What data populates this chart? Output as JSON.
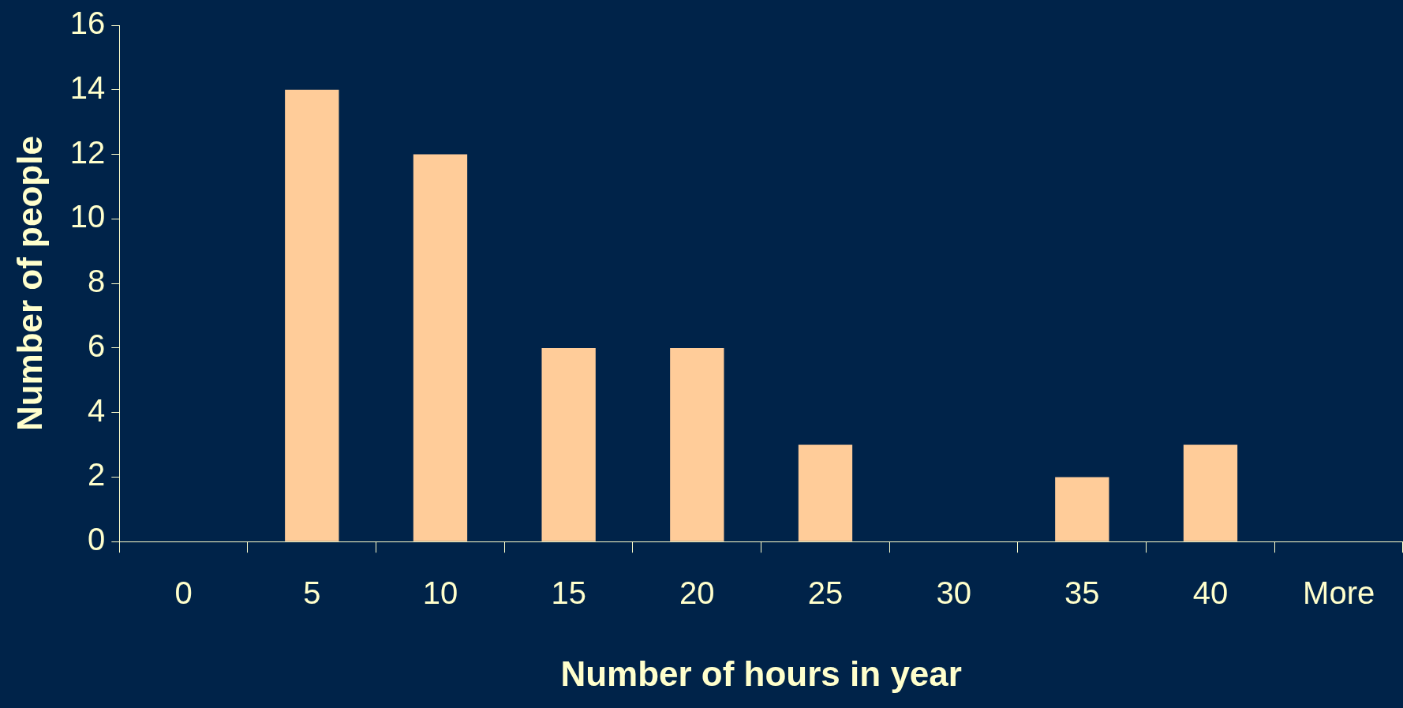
{
  "chart_data": {
    "type": "bar",
    "xlabel": "Number of hours in year",
    "ylabel": "Number of people",
    "categories": [
      "0",
      "5",
      "10",
      "15",
      "20",
      "25",
      "30",
      "35",
      "40",
      "More"
    ],
    "values": [
      0,
      14,
      12,
      6,
      6,
      3,
      0,
      2,
      3,
      0
    ],
    "color": "#ffcc99",
    "ylim": [
      0,
      16
    ],
    "yticks": [
      0,
      2,
      4,
      6,
      8,
      10,
      12,
      14,
      16
    ],
    "grid": false,
    "legend": false
  }
}
